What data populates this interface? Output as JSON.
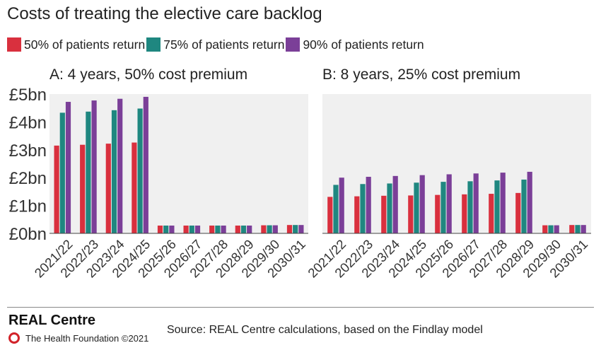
{
  "title": "Costs of treating the elective care backlog",
  "legend": [
    {
      "label": "50% of patients return",
      "color": "#d9303e"
    },
    {
      "label": "75% of patients return",
      "color": "#1f8780"
    },
    {
      "label": "90% of patients return",
      "color": "#7b3f98"
    }
  ],
  "chart_data": [
    {
      "type": "bar",
      "title": "A: 4 years, 50% cost premium",
      "categories": [
        "2021/22",
        "2022/23",
        "2023/24",
        "2024/25",
        "2025/26",
        "2026/27",
        "2027/28",
        "2028/29",
        "2029/30",
        "2030/31"
      ],
      "y_ticks": [
        "£0bn",
        "£1bn",
        "£2bn",
        "£3bn",
        "£4bn",
        "£5bn"
      ],
      "ylim": [
        0,
        5
      ],
      "grid": false,
      "series": [
        {
          "name": "50% of patients return",
          "color": "#d9303e",
          "values": [
            3.15,
            3.18,
            3.22,
            3.26,
            0.28,
            0.28,
            0.28,
            0.28,
            0.29,
            0.3
          ]
        },
        {
          "name": "75% of patients return",
          "color": "#1f8780",
          "values": [
            4.33,
            4.37,
            4.42,
            4.48,
            0.28,
            0.28,
            0.28,
            0.28,
            0.29,
            0.3
          ]
        },
        {
          "name": "90% of patients return",
          "color": "#7b3f98",
          "values": [
            4.72,
            4.77,
            4.83,
            4.9,
            0.28,
            0.28,
            0.28,
            0.28,
            0.29,
            0.3
          ]
        }
      ]
    },
    {
      "type": "bar",
      "title": "B: 8 years, 25% cost premium",
      "categories": [
        "2021/22",
        "2022/23",
        "2023/24",
        "2024/25",
        "2025/26",
        "2026/27",
        "2027/28",
        "2028/29",
        "2029/30",
        "2030/31"
      ],
      "ylim": [
        0,
        5
      ],
      "grid": false,
      "series": [
        {
          "name": "50% of patients return",
          "color": "#d9303e",
          "values": [
            1.31,
            1.33,
            1.35,
            1.36,
            1.38,
            1.4,
            1.42,
            1.45,
            0.29,
            0.3
          ]
        },
        {
          "name": "75% of patients return",
          "color": "#1f8780",
          "values": [
            1.74,
            1.77,
            1.79,
            1.82,
            1.85,
            1.87,
            1.9,
            1.93,
            0.29,
            0.3
          ]
        },
        {
          "name": "90% of patients return",
          "color": "#7b3f98",
          "values": [
            2.0,
            2.03,
            2.06,
            2.09,
            2.12,
            2.15,
            2.18,
            2.21,
            0.29,
            0.3
          ]
        }
      ]
    }
  ],
  "footer": {
    "brand": "REAL Centre",
    "foundation": "The Health Foundation ©2021",
    "source": "Source: REAL Centre calculations, based on the Findlay model"
  }
}
